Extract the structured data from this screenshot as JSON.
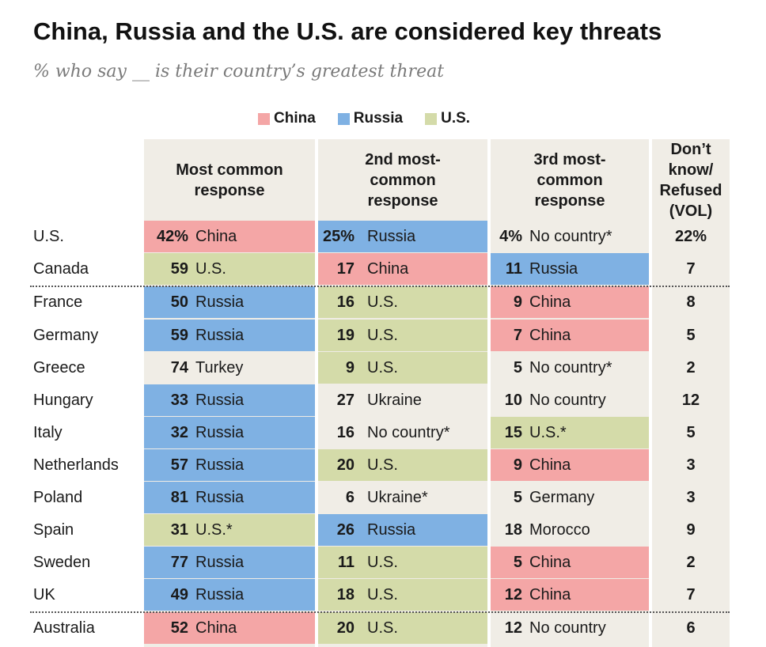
{
  "title": "China, Russia and the U.S. are considered key threats",
  "subtitle": "% who say __ is their country’s greatest threat",
  "legend": [
    {
      "label": "China",
      "color": "#f4a6a6"
    },
    {
      "label": "Russia",
      "color": "#7fb1e3"
    },
    {
      "label": "U.S.",
      "color": "#d4dba9"
    }
  ],
  "colors": {
    "China": "#f4a6a6",
    "Russia": "#7fb1e3",
    "U.S.": "#d4dba9",
    "none": "#f0ede6"
  },
  "headers": {
    "first": "Most common response",
    "second": "2nd most-common response",
    "third": "3rd most-common response",
    "dk": "Don’t know/ Refused (VOL)"
  },
  "chart_data": {
    "type": "table",
    "title": "China, Russia and the U.S. are considered key threats",
    "subtitle": "% who say __ is their country’s greatest threat",
    "columns": [
      "Most common response",
      "2nd most-common response",
      "3rd most-common response",
      "Don’t know/ Refused (VOL)"
    ],
    "rows": [
      {
        "country": "U.S.",
        "first": {
          "value": "42%",
          "label": "China",
          "cat": "China"
        },
        "second": {
          "value": "25%",
          "label": "Russia",
          "cat": "Russia"
        },
        "third": {
          "value": "4%",
          "label": "No country*",
          "cat": "none"
        },
        "dk": "22%"
      },
      {
        "country": "Canada",
        "first": {
          "value": "59",
          "label": "U.S.",
          "cat": "U.S."
        },
        "second": {
          "value": "17",
          "label": "China",
          "cat": "China"
        },
        "third": {
          "value": "11",
          "label": "Russia",
          "cat": "Russia"
        },
        "dk": "7"
      },
      {
        "country": "France",
        "first": {
          "value": "50",
          "label": "Russia",
          "cat": "Russia"
        },
        "second": {
          "value": "16",
          "label": "U.S.",
          "cat": "U.S."
        },
        "third": {
          "value": "9",
          "label": "China",
          "cat": "China"
        },
        "dk": "8"
      },
      {
        "country": "Germany",
        "first": {
          "value": "59",
          "label": "Russia",
          "cat": "Russia"
        },
        "second": {
          "value": "19",
          "label": "U.S.",
          "cat": "U.S."
        },
        "third": {
          "value": "7",
          "label": "China",
          "cat": "China"
        },
        "dk": "5"
      },
      {
        "country": "Greece",
        "first": {
          "value": "74",
          "label": "Turkey",
          "cat": "none"
        },
        "second": {
          "value": "9",
          "label": "U.S.",
          "cat": "U.S."
        },
        "third": {
          "value": "5",
          "label": "No country*",
          "cat": "none"
        },
        "dk": "2"
      },
      {
        "country": "Hungary",
        "first": {
          "value": "33",
          "label": "Russia",
          "cat": "Russia"
        },
        "second": {
          "value": "27",
          "label": "Ukraine",
          "cat": "none"
        },
        "third": {
          "value": "10",
          "label": "No country",
          "cat": "none"
        },
        "dk": "12"
      },
      {
        "country": "Italy",
        "first": {
          "value": "32",
          "label": "Russia",
          "cat": "Russia"
        },
        "second": {
          "value": "16",
          "label": "No country*",
          "cat": "none"
        },
        "third": {
          "value": "15",
          "label": "U.S.*",
          "cat": "U.S."
        },
        "dk": "5"
      },
      {
        "country": "Netherlands",
        "first": {
          "value": "57",
          "label": "Russia",
          "cat": "Russia"
        },
        "second": {
          "value": "20",
          "label": "U.S.",
          "cat": "U.S."
        },
        "third": {
          "value": "9",
          "label": "China",
          "cat": "China"
        },
        "dk": "3"
      },
      {
        "country": "Poland",
        "first": {
          "value": "81",
          "label": "Russia",
          "cat": "Russia"
        },
        "second": {
          "value": "6",
          "label": "Ukraine*",
          "cat": "none"
        },
        "third": {
          "value": "5",
          "label": "Germany",
          "cat": "none"
        },
        "dk": "3"
      },
      {
        "country": "Spain",
        "first": {
          "value": "31",
          "label": "U.S.*",
          "cat": "U.S."
        },
        "second": {
          "value": "26",
          "label": "Russia",
          "cat": "Russia"
        },
        "third": {
          "value": "18",
          "label": "Morocco",
          "cat": "none"
        },
        "dk": "9"
      },
      {
        "country": "Sweden",
        "first": {
          "value": "77",
          "label": "Russia",
          "cat": "Russia"
        },
        "second": {
          "value": "11",
          "label": "U.S.",
          "cat": "U.S."
        },
        "third": {
          "value": "5",
          "label": "China",
          "cat": "China"
        },
        "dk": "2"
      },
      {
        "country": "UK",
        "first": {
          "value": "49",
          "label": "Russia",
          "cat": "Russia"
        },
        "second": {
          "value": "18",
          "label": "U.S.",
          "cat": "U.S."
        },
        "third": {
          "value": "12",
          "label": "China",
          "cat": "China"
        },
        "dk": "7"
      },
      {
        "country": "Australia",
        "first": {
          "value": "52",
          "label": "China",
          "cat": "China"
        },
        "second": {
          "value": "20",
          "label": "U.S.",
          "cat": "U.S."
        },
        "third": {
          "value": "12",
          "label": "No country",
          "cat": "none"
        },
        "dk": "6"
      }
    ],
    "group_breaks_after": [
      "Canada",
      "UK"
    ]
  }
}
